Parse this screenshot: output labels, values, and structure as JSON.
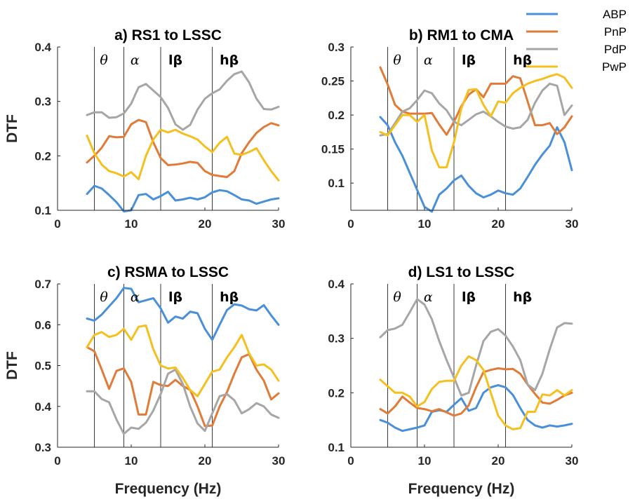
{
  "chart_data": [
    {
      "type": "line",
      "title": "a) RS1 to LSSC",
      "xlabel": "",
      "ylabel": "DTF",
      "xlim": [
        0,
        30
      ],
      "ylim": [
        0.1,
        0.4
      ],
      "xticks": [
        0,
        10,
        20,
        30
      ],
      "yticks": [
        0.1,
        0.2,
        0.3,
        0.4
      ],
      "ytick_labels": [
        "0.1",
        "0.2",
        "0.3",
        "0.4"
      ],
      "x": [
        4,
        5,
        6,
        7,
        8,
        9,
        10,
        11,
        12,
        13,
        14,
        15,
        16,
        17,
        18,
        19,
        20,
        21,
        22,
        23,
        24,
        25,
        26,
        27,
        28,
        29,
        30
      ],
      "series": [
        {
          "name": "ABP",
          "values": [
            0.13,
            0.145,
            0.14,
            0.128,
            0.115,
            0.098,
            0.1,
            0.128,
            0.13,
            0.12,
            0.126,
            0.134,
            0.118,
            0.12,
            0.123,
            0.12,
            0.124,
            0.133,
            0.137,
            0.135,
            0.128,
            0.12,
            0.118,
            0.112,
            0.116,
            0.12,
            0.122
          ]
        },
        {
          "name": "PnP",
          "values": [
            0.188,
            0.2,
            0.215,
            0.236,
            0.234,
            0.235,
            0.258,
            0.266,
            0.262,
            0.225,
            0.196,
            0.183,
            0.184,
            0.186,
            0.189,
            0.187,
            0.172,
            0.165,
            0.163,
            0.161,
            0.172,
            0.205,
            0.225,
            0.242,
            0.253,
            0.26,
            0.256
          ]
        },
        {
          "name": "PdP",
          "values": [
            0.275,
            0.28,
            0.28,
            0.27,
            0.271,
            0.278,
            0.296,
            0.326,
            0.332,
            0.32,
            0.308,
            0.288,
            0.258,
            0.248,
            0.257,
            0.285,
            0.305,
            0.315,
            0.322,
            0.338,
            0.35,
            0.355,
            0.335,
            0.305,
            0.286,
            0.285,
            0.29
          ]
        },
        {
          "name": "PwP",
          "values": [
            0.237,
            0.205,
            0.184,
            0.172,
            0.168,
            0.162,
            0.17,
            0.157,
            0.2,
            0.23,
            0.248,
            0.243,
            0.248,
            0.241,
            0.236,
            0.23,
            0.217,
            0.207,
            0.224,
            0.235,
            0.204,
            0.202,
            0.207,
            0.214,
            0.192,
            0.172,
            0.155
          ]
        }
      ]
    },
    {
      "type": "line",
      "title": "b) RM1 to CMA",
      "xlabel": "",
      "ylabel": "",
      "xlim": [
        0,
        30
      ],
      "ylim": [
        0.06,
        0.3
      ],
      "xticks": [
        0,
        10,
        20,
        30
      ],
      "yticks": [
        0.1,
        0.15,
        0.2,
        0.25,
        0.3
      ],
      "ytick_labels": [
        "0.1",
        "0.15",
        "0.2",
        "0.25",
        "0.3"
      ],
      "x": [
        4,
        5,
        6,
        7,
        8,
        9,
        10,
        11,
        12,
        13,
        14,
        15,
        16,
        17,
        18,
        19,
        20,
        21,
        22,
        23,
        24,
        25,
        26,
        27,
        28,
        29,
        30
      ],
      "series": [
        {
          "name": "ABP",
          "values": [
            0.197,
            0.185,
            0.16,
            0.14,
            0.115,
            0.09,
            0.065,
            0.058,
            0.083,
            0.092,
            0.104,
            0.111,
            0.096,
            0.085,
            0.079,
            0.083,
            0.089,
            0.085,
            0.083,
            0.092,
            0.109,
            0.127,
            0.142,
            0.155,
            0.182,
            0.16,
            0.119
          ]
        },
        {
          "name": "PnP",
          "values": [
            0.27,
            0.245,
            0.215,
            0.205,
            0.202,
            0.202,
            0.202,
            0.203,
            0.186,
            0.171,
            0.19,
            0.213,
            0.23,
            0.238,
            0.226,
            0.246,
            0.246,
            0.246,
            0.257,
            0.254,
            0.22,
            0.185,
            0.185,
            0.188,
            0.172,
            0.182,
            0.198
          ]
        },
        {
          "name": "PdP",
          "values": [
            0.17,
            0.172,
            0.188,
            0.205,
            0.21,
            0.222,
            0.236,
            0.232,
            0.217,
            0.207,
            0.19,
            0.185,
            0.193,
            0.201,
            0.205,
            0.198,
            0.19,
            0.183,
            0.18,
            0.182,
            0.193,
            0.218,
            0.236,
            0.246,
            0.243,
            0.2,
            0.214
          ]
        },
        {
          "name": "PwP",
          "values": [
            0.175,
            0.17,
            0.185,
            0.2,
            0.2,
            0.19,
            0.2,
            0.148,
            0.123,
            0.123,
            0.16,
            0.21,
            0.237,
            0.238,
            0.215,
            0.198,
            0.22,
            0.218,
            0.232,
            0.24,
            0.246,
            0.25,
            0.253,
            0.257,
            0.26,
            0.255,
            0.24
          ]
        }
      ]
    },
    {
      "type": "line",
      "title": "c) RSMA to LSSC",
      "xlabel": "Frequency (Hz)",
      "ylabel": "DTF",
      "xlim": [
        0,
        30
      ],
      "ylim": [
        0.3,
        0.7
      ],
      "xticks": [
        0,
        10,
        20,
        30
      ],
      "yticks": [
        0.3,
        0.4,
        0.5,
        0.6,
        0.7
      ],
      "ytick_labels": [
        "0.3",
        "0.4",
        "0.5",
        "0.6",
        "0.7"
      ],
      "x": [
        4,
        5,
        6,
        7,
        8,
        9,
        10,
        11,
        12,
        13,
        14,
        15,
        16,
        17,
        18,
        19,
        20,
        21,
        22,
        23,
        24,
        25,
        26,
        27,
        28,
        29,
        30
      ],
      "series": [
        {
          "name": "ABP",
          "values": [
            0.615,
            0.61,
            0.625,
            0.645,
            0.665,
            0.69,
            0.688,
            0.655,
            0.66,
            0.665,
            0.64,
            0.605,
            0.62,
            0.615,
            0.632,
            0.628,
            0.59,
            0.563,
            0.6,
            0.636,
            0.65,
            0.647,
            0.638,
            0.635,
            0.648,
            0.623,
            0.6
          ]
        },
        {
          "name": "PnP",
          "values": [
            0.545,
            0.535,
            0.49,
            0.443,
            0.487,
            0.493,
            0.46,
            0.38,
            0.38,
            0.46,
            0.452,
            0.45,
            0.465,
            0.45,
            0.44,
            0.4,
            0.352,
            0.353,
            0.4,
            0.435,
            0.48,
            0.52,
            0.528,
            0.49,
            0.463,
            0.417,
            0.432
          ]
        },
        {
          "name": "PdP",
          "values": [
            0.437,
            0.437,
            0.418,
            0.41,
            0.368,
            0.333,
            0.348,
            0.345,
            0.36,
            0.39,
            0.43,
            0.48,
            0.49,
            0.455,
            0.4,
            0.358,
            0.34,
            0.383,
            0.425,
            0.43,
            0.415,
            0.383,
            0.393,
            0.408,
            0.4,
            0.38,
            0.372
          ]
        },
        {
          "name": "PwP",
          "values": [
            0.545,
            0.575,
            0.582,
            0.57,
            0.575,
            0.59,
            0.563,
            0.595,
            0.598,
            0.54,
            0.5,
            0.493,
            0.495,
            0.47,
            0.44,
            0.425,
            0.455,
            0.485,
            0.49,
            0.52,
            0.545,
            0.575,
            0.53,
            0.5,
            0.503,
            0.49,
            0.463
          ]
        }
      ]
    },
    {
      "type": "line",
      "title": "d) LS1 to LSSC",
      "xlabel": "Frequency (Hz)",
      "ylabel": "",
      "xlim": [
        0,
        30
      ],
      "ylim": [
        0.1,
        0.4
      ],
      "xticks": [
        0,
        10,
        20,
        30
      ],
      "yticks": [
        0.1,
        0.2,
        0.3,
        0.4
      ],
      "ytick_labels": [
        "0.1",
        "0.2",
        "0.3",
        "0.4"
      ],
      "x": [
        4,
        5,
        6,
        7,
        8,
        9,
        10,
        11,
        12,
        13,
        14,
        15,
        16,
        17,
        18,
        19,
        20,
        21,
        22,
        23,
        24,
        25,
        26,
        27,
        28,
        29,
        30
      ],
      "series": [
        {
          "name": "ABP",
          "values": [
            0.15,
            0.145,
            0.136,
            0.13,
            0.133,
            0.136,
            0.14,
            0.165,
            0.168,
            0.165,
            0.178,
            0.19,
            0.167,
            0.172,
            0.2,
            0.21,
            0.214,
            0.21,
            0.196,
            0.172,
            0.15,
            0.14,
            0.136,
            0.14,
            0.138,
            0.14,
            0.143
          ]
        },
        {
          "name": "PnP",
          "values": [
            0.17,
            0.162,
            0.175,
            0.193,
            0.182,
            0.172,
            0.17,
            0.166,
            0.17,
            0.164,
            0.158,
            0.162,
            0.177,
            0.21,
            0.238,
            0.242,
            0.245,
            0.243,
            0.244,
            0.235,
            0.215,
            0.198,
            0.182,
            0.18,
            0.187,
            0.195,
            0.2
          ]
        },
        {
          "name": "PdP",
          "values": [
            0.302,
            0.315,
            0.318,
            0.325,
            0.348,
            0.372,
            0.362,
            0.335,
            0.295,
            0.26,
            0.228,
            0.195,
            0.2,
            0.25,
            0.295,
            0.312,
            0.317,
            0.305,
            0.285,
            0.26,
            0.215,
            0.205,
            0.235,
            0.28,
            0.32,
            0.328,
            0.327
          ]
        },
        {
          "name": "PwP",
          "values": [
            0.224,
            0.212,
            0.2,
            0.2,
            0.193,
            0.175,
            0.183,
            0.207,
            0.22,
            0.222,
            0.222,
            0.25,
            0.267,
            0.26,
            0.242,
            0.2,
            0.158,
            0.14,
            0.133,
            0.135,
            0.165,
            0.165,
            0.197,
            0.195,
            0.205,
            0.195,
            0.205
          ]
        }
      ]
    }
  ],
  "bands": {
    "lines_hz": [
      5,
      9,
      14,
      21
    ],
    "labels": [
      {
        "text": "θ",
        "x_hz": 6.3,
        "style": "italic"
      },
      {
        "text": "α",
        "x_hz": 10.5,
        "style": "italic"
      },
      {
        "text": "lβ",
        "x_hz": 16.0,
        "style": "mixed"
      },
      {
        "text": "hβ",
        "x_hz": 23.3,
        "style": "mixed"
      }
    ]
  },
  "legend": {
    "entries": [
      "ABP",
      "PnP",
      "PdP",
      "PwP"
    ],
    "placement": "top-right"
  },
  "colors": {
    "ABP": "#4a90d9",
    "PnP": "#e07b39",
    "PdP": "#a6a6a6",
    "PwP": "#f5c01f"
  }
}
